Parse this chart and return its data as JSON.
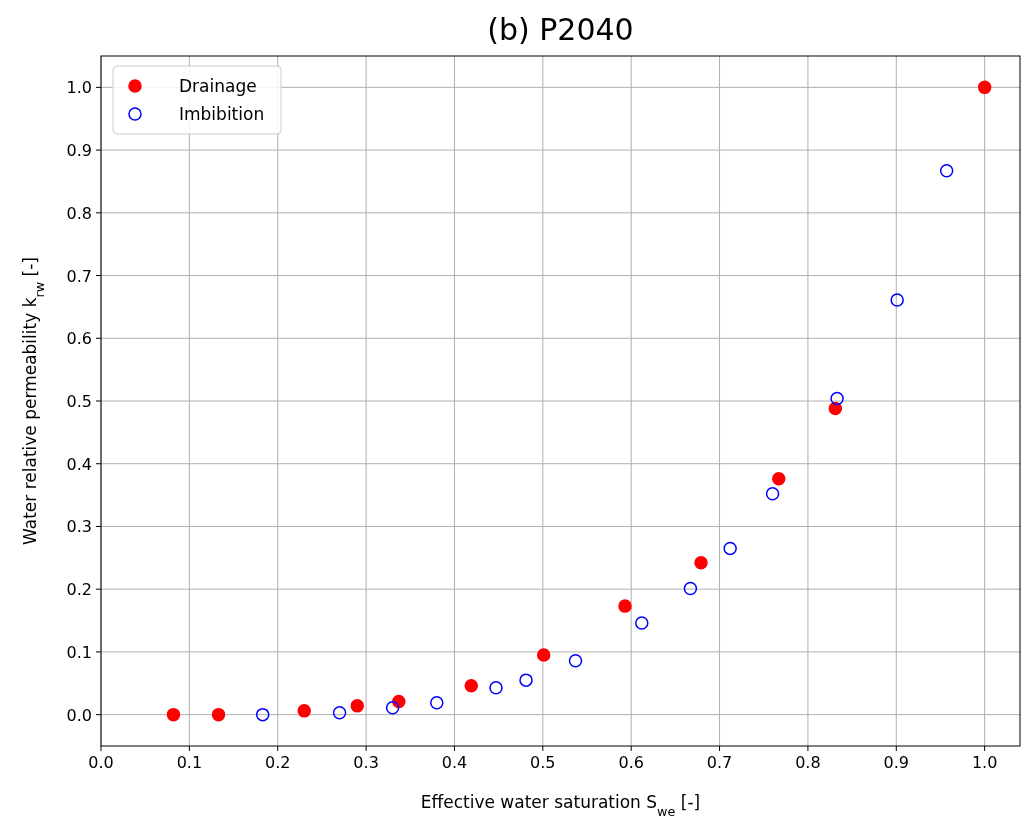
{
  "chart_data": {
    "type": "scatter",
    "title": "(b) P2040",
    "xlabel": "Effective water saturation S$_{we}$ [-]",
    "ylabel": "Water relative permeability k$_{rw}$ [-]",
    "xlim": [
      0,
      1.04
    ],
    "ylim": [
      -0.05,
      1.05
    ],
    "xticks": [
      {
        "value": 0,
        "label": "0.0"
      },
      0.1,
      0.2,
      0.3,
      0.4,
      0.5,
      0.6,
      0.7,
      0.8,
      0.9,
      {
        "value": 1,
        "label": "1.0"
      }
    ],
    "yticks": [
      {
        "value": 0,
        "label": "0.0"
      },
      0.1,
      0.2,
      0.3,
      0.4,
      0.5,
      0.6,
      0.7,
      0.8,
      0.9,
      {
        "value": 1,
        "label": "1.0"
      }
    ],
    "grid": true,
    "legend": "top left",
    "marker": "circle",
    "series": [
      {
        "name": "Drainage",
        "color": "#ff0000",
        "x": [
          0.082,
          0.133,
          0.23,
          0.29,
          0.337,
          0.419,
          0.501,
          0.593,
          0.679,
          0.767,
          0.831,
          1.0
        ],
        "values": [
          0.0,
          0.0,
          0.006,
          0.014,
          0.021,
          0.046,
          0.095,
          0.173,
          0.242,
          0.376,
          0.488,
          1.0
        ]
      },
      {
        "name": "Imbibition",
        "color": "#0000ff",
        "x": [
          0.183,
          0.27,
          0.33,
          0.38,
          0.447,
          0.481,
          0.537,
          0.612,
          0.667,
          0.712,
          0.76,
          0.833,
          0.901,
          0.957
        ],
        "values": [
          0.0,
          0.003,
          0.011,
          0.019,
          0.043,
          0.055,
          0.086,
          0.146,
          0.201,
          0.265,
          0.352,
          0.504,
          0.661,
          0.867
        ]
      }
    ]
  }
}
